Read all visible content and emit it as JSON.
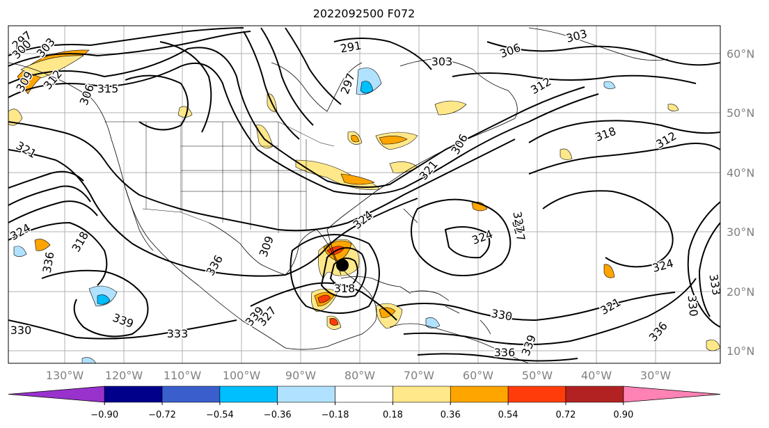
{
  "title": "2022092500 F072",
  "map": {
    "lat_labels": [
      "60°N",
      "50°N",
      "40°N",
      "30°N",
      "20°N",
      "10°N"
    ],
    "lon_labels": [
      "130°W",
      "120°W",
      "110°W",
      "100°W",
      "90°W",
      "80°W",
      "70°W",
      "60°W",
      "50°W",
      "40°W",
      "30°W"
    ],
    "contour_labels": [
      "297",
      "300",
      "303",
      "309",
      "312",
      "315",
      "306",
      "321",
      "324",
      "318",
      "336",
      "339",
      "333",
      "330",
      "327",
      "291",
      "297",
      "303",
      "306",
      "303",
      "312",
      "318",
      "312",
      "324",
      "327",
      "324",
      "321",
      "336",
      "333",
      "330",
      "333",
      "336",
      "339",
      "318",
      "336",
      "309",
      "306",
      "321",
      "324",
      "327",
      "330",
      "339"
    ],
    "grid_color": "#b0b0b0",
    "contour_color": "#000000"
  },
  "colorbar": {
    "tick_labels": [
      "−0.90",
      "−0.72",
      "−0.54",
      "−0.36",
      "−0.18",
      "0.18",
      "0.36",
      "0.54",
      "0.72",
      "0.90"
    ],
    "under_color": "#9932cc",
    "over_color": "#ff82b4",
    "colors": [
      "#00008b",
      "#3a5fcd",
      "#00bfff",
      "#b0e2ff",
      "#ffffff",
      "#ffe88a",
      "#ffa500",
      "#ff3c0a",
      "#b22222"
    ]
  }
}
